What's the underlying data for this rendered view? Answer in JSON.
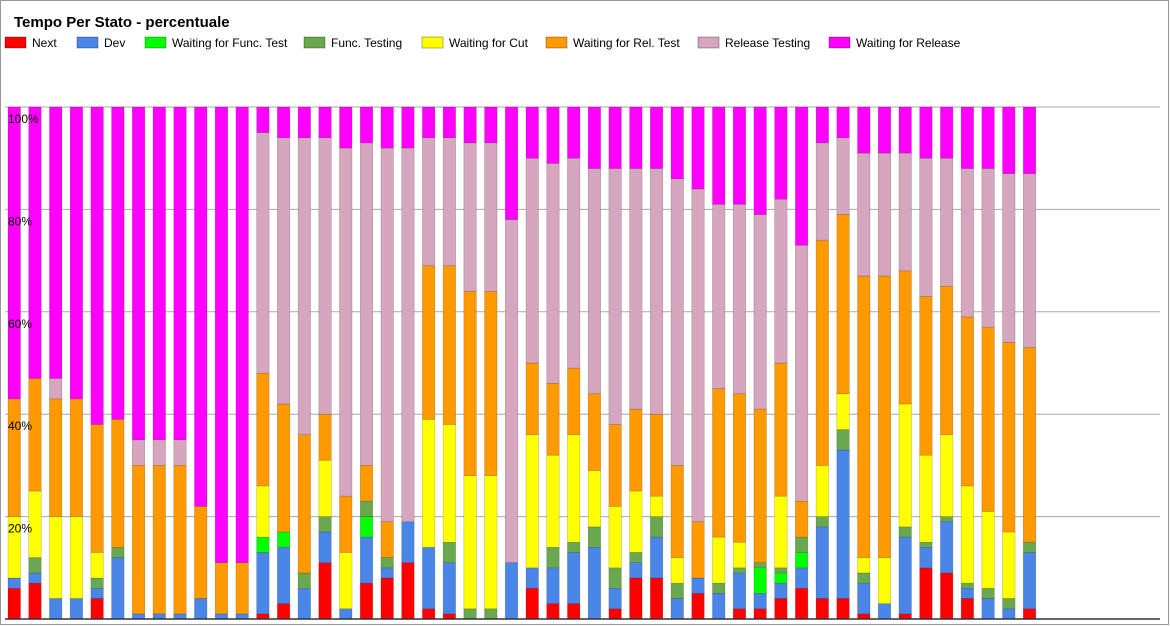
{
  "chart_data": {
    "type": "stacked_bar",
    "title": "Tempo Per Stato - percentuale",
    "categories": [
      null,
      null,
      null,
      null,
      null,
      null,
      null,
      null,
      null,
      null,
      null,
      null,
      null,
      null,
      null,
      null,
      null,
      null,
      null,
      null,
      null,
      null,
      null,
      null,
      null,
      null,
      null,
      null,
      null,
      null,
      null,
      null,
      null,
      null,
      null,
      null,
      null,
      null,
      null,
      null,
      null,
      null,
      null,
      null,
      null,
      null,
      null,
      null,
      null,
      null
    ],
    "ylim": [
      0,
      100
    ],
    "yticks": [
      {
        "value": 20,
        "label": "20%"
      },
      {
        "value": 40,
        "label": "40%"
      },
      {
        "value": 60,
        "label": "60%"
      },
      {
        "value": 80,
        "label": "80%"
      },
      {
        "value": 100,
        "label": "100%"
      }
    ],
    "grid": true,
    "legend": "top",
    "series": [
      {
        "name": "Next",
        "color": "#ff0000",
        "values": [
          6,
          7,
          0,
          0,
          4,
          0,
          0,
          0,
          0,
          0,
          0,
          0,
          1,
          3,
          0,
          11,
          0,
          7,
          8,
          11,
          2,
          1,
          0,
          0,
          0,
          6,
          3,
          3,
          0,
          2,
          8,
          8,
          0,
          5,
          0,
          2,
          2,
          4,
          6,
          4,
          4,
          1,
          0,
          1,
          10,
          9,
          4,
          0,
          0,
          2
        ]
      },
      {
        "name": "Dev",
        "color": "#4a86e8",
        "values": [
          2,
          2,
          4,
          4,
          2,
          12,
          1,
          1,
          1,
          4,
          1,
          1,
          12,
          11,
          6,
          6,
          2,
          9,
          2,
          8,
          12,
          10,
          0,
          0,
          11,
          4,
          7,
          10,
          14,
          4,
          3,
          8,
          4,
          3,
          5,
          7,
          3,
          3,
          4,
          14,
          29,
          6,
          3,
          15,
          4,
          10,
          2,
          4,
          2,
          11
        ]
      },
      {
        "name": "Waiting for Func. Test",
        "color": "#00ff00",
        "values": [
          0,
          0,
          0,
          0,
          0,
          0,
          0,
          0,
          0,
          0,
          0,
          0,
          3,
          3,
          0,
          0,
          0,
          4,
          0,
          0,
          0,
          0,
          0,
          0,
          0,
          0,
          0,
          0,
          0,
          0,
          0,
          0,
          0,
          0,
          0,
          0,
          5,
          2,
          3,
          0,
          0,
          0,
          0,
          0,
          0,
          0,
          0,
          0,
          0,
          0
        ]
      },
      {
        "name": "Func. Testing",
        "color": "#6aa84f",
        "values": [
          0,
          3,
          0,
          0,
          2,
          2,
          0,
          0,
          0,
          0,
          0,
          0,
          0,
          0,
          3,
          3,
          0,
          3,
          2,
          0,
          0,
          4,
          2,
          2,
          0,
          0,
          4,
          2,
          4,
          4,
          2,
          4,
          3,
          0,
          2,
          1,
          1,
          1,
          3,
          2,
          4,
          2,
          0,
          2,
          1,
          1,
          1,
          2,
          2,
          2
        ]
      },
      {
        "name": "Waiting for Cut",
        "color": "#ffff00",
        "values": [
          12,
          13,
          16,
          16,
          5,
          0,
          0,
          0,
          0,
          0,
          0,
          0,
          10,
          0,
          0,
          11,
          11,
          0,
          0,
          0,
          25,
          23,
          26,
          26,
          0,
          26,
          18,
          21,
          11,
          12,
          12,
          4,
          5,
          0,
          9,
          5,
          0,
          14,
          0,
          10,
          7,
          3,
          9,
          24,
          17,
          16,
          19,
          15,
          13,
          0
        ]
      },
      {
        "name": "Waiting for Rel. Test",
        "color": "#ff9900",
        "values": [
          23,
          22,
          23,
          23,
          25,
          25,
          29,
          29,
          29,
          18,
          10,
          10,
          22,
          25,
          27,
          9,
          11,
          7,
          7,
          0,
          30,
          31,
          36,
          36,
          0,
          14,
          14,
          13,
          15,
          16,
          16,
          16,
          18,
          11,
          29,
          29,
          30,
          26,
          7,
          44,
          35,
          55,
          55,
          26,
          31,
          29,
          33,
          36,
          37,
          38
        ]
      },
      {
        "name": "Release Testing",
        "color": "#d5a6bd",
        "values": [
          0,
          0,
          4,
          0,
          0,
          0,
          5,
          5,
          5,
          0,
          0,
          0,
          47,
          52,
          58,
          54,
          68,
          63,
          73,
          73,
          25,
          25,
          29,
          29,
          67,
          40,
          43,
          41,
          44,
          50,
          47,
          48,
          56,
          65,
          36,
          37,
          38,
          32,
          50,
          19,
          15,
          24,
          24,
          23,
          27,
          25,
          29,
          31,
          33,
          34
        ]
      },
      {
        "name": "Waiting for Release",
        "color": "#ff00ff",
        "values": [
          57,
          53,
          53,
          57,
          62,
          61,
          65,
          65,
          65,
          78,
          89,
          89,
          5,
          6,
          6,
          6,
          8,
          7,
          8,
          8,
          6,
          6,
          7,
          7,
          22,
          10,
          11,
          10,
          12,
          12,
          12,
          12,
          14,
          16,
          19,
          19,
          21,
          18,
          27,
          7,
          6,
          9,
          9,
          9,
          10,
          10,
          12,
          12,
          13,
          13
        ]
      }
    ]
  }
}
